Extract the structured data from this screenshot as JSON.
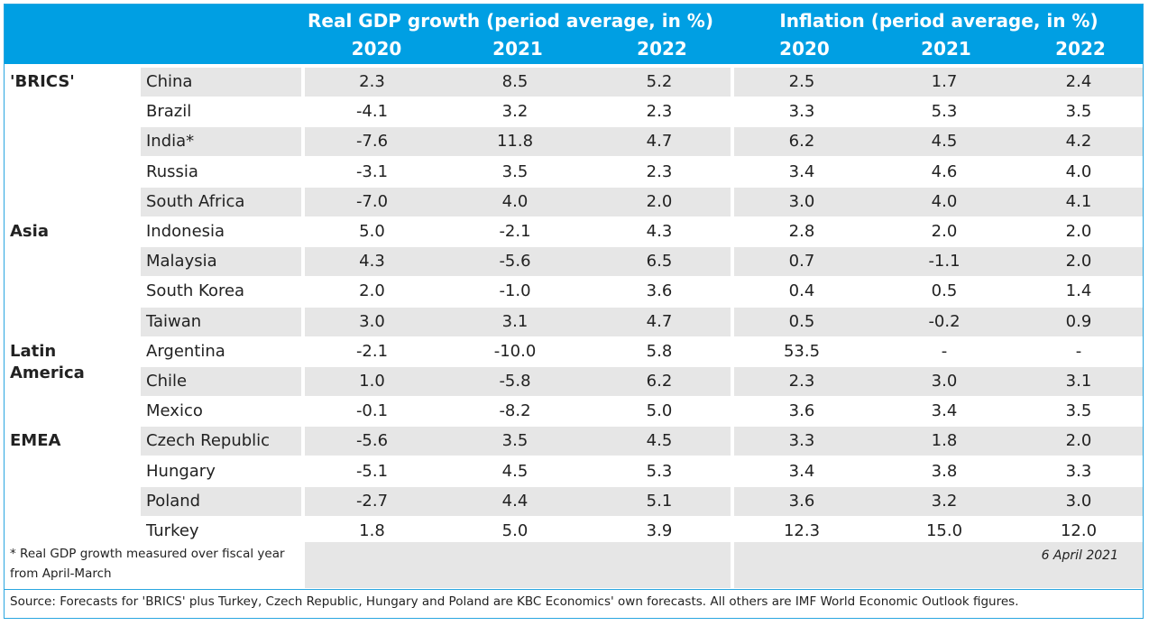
{
  "header": {
    "gdp_title": "Real GDP growth (period average, in %)",
    "infl_title": "Inflation (period average, in %)",
    "years": [
      "2020",
      "2021",
      "2022",
      "2020",
      "2021",
      "2022"
    ]
  },
  "regions": [
    {
      "name": "'BRICS'",
      "rows": [
        {
          "country": "China",
          "v": [
            "2.3",
            "8.5",
            "5.2",
            "2.5",
            "1.7",
            "2.4"
          ]
        },
        {
          "country": "Brazil",
          "v": [
            "-4.1",
            "3.2",
            "2.3",
            "3.3",
            "5.3",
            "3.5"
          ]
        },
        {
          "country": "India*",
          "v": [
            "-7.6",
            "11.8",
            "4.7",
            "6.2",
            "4.5",
            "4.2"
          ]
        },
        {
          "country": "Russia",
          "v": [
            "-3.1",
            "3.5",
            "2.3",
            "3.4",
            "4.6",
            "4.0"
          ]
        },
        {
          "country": "South Africa",
          "v": [
            "-7.0",
            "4.0",
            "2.0",
            "3.0",
            "4.0",
            "4.1"
          ]
        }
      ]
    },
    {
      "name": "Asia",
      "rows": [
        {
          "country": "Indonesia",
          "v": [
            "5.0",
            "-2.1",
            "4.3",
            "2.8",
            "2.0",
            "2.0"
          ]
        },
        {
          "country": "Malaysia",
          "v": [
            "4.3",
            "-5.6",
            "6.5",
            "0.7",
            "-1.1",
            "2.0"
          ]
        },
        {
          "country": "South Korea",
          "v": [
            "2.0",
            "-1.0",
            "3.6",
            "0.4",
            "0.5",
            "1.4"
          ]
        },
        {
          "country": "Taiwan",
          "v": [
            "3.0",
            "3.1",
            "4.7",
            "0.5",
            "-0.2",
            "0.9"
          ]
        }
      ]
    },
    {
      "name": "Latin America",
      "rows": [
        {
          "country": "Argentina",
          "v": [
            "-2.1",
            "-10.0",
            "5.8",
            "53.5",
            "-",
            "-"
          ]
        },
        {
          "country": "Chile",
          "v": [
            "1.0",
            "-5.8",
            "6.2",
            "2.3",
            "3.0",
            "3.1"
          ]
        },
        {
          "country": "Mexico",
          "v": [
            "-0.1",
            "-8.2",
            "5.0",
            "3.6",
            "3.4",
            "3.5"
          ]
        }
      ]
    },
    {
      "name": "EMEA",
      "rows": [
        {
          "country": "Czech Republic",
          "v": [
            "-5.6",
            "3.5",
            "4.5",
            "3.3",
            "1.8",
            "2.0"
          ]
        },
        {
          "country": "Hungary",
          "v": [
            "-5.1",
            "4.5",
            "5.3",
            "3.4",
            "3.8",
            "3.3"
          ]
        },
        {
          "country": "Poland",
          "v": [
            "-2.7",
            "4.4",
            "5.1",
            "3.6",
            "3.2",
            "3.0"
          ]
        },
        {
          "country": "Turkey",
          "v": [
            "1.8",
            "5.0",
            "3.9",
            "12.3",
            "15.0",
            "12.0"
          ]
        }
      ]
    }
  ],
  "footnote": "* Real GDP growth measured over fiscal year from April-March",
  "date": "6 April 2021",
  "source": "Source: Forecasts for 'BRICS' plus Turkey, Czech Republic, Hungary and Poland are KBC Economics' own forecasts. All others are IMF World Economic Outlook figures.",
  "colors": {
    "header": "#009fe3",
    "stripe": "#e6e6e6",
    "border": "#2aa6e0"
  }
}
